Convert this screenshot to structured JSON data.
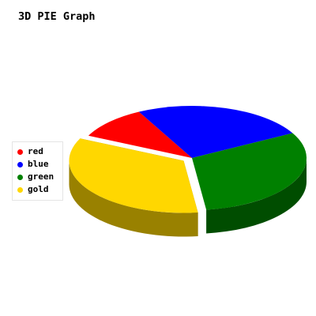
{
  "chart_data": {
    "type": "pie",
    "title": "3D PIE Graph",
    "categories": [
      "red",
      "blue",
      "green",
      "gold"
    ],
    "values": [
      10,
      24,
      30,
      33
    ],
    "colors": [
      "#ff0000",
      "#0000ff",
      "#008000",
      "#ffd700"
    ],
    "exploded": [
      "gold"
    ],
    "legend_position": "left",
    "style": "3d"
  }
}
